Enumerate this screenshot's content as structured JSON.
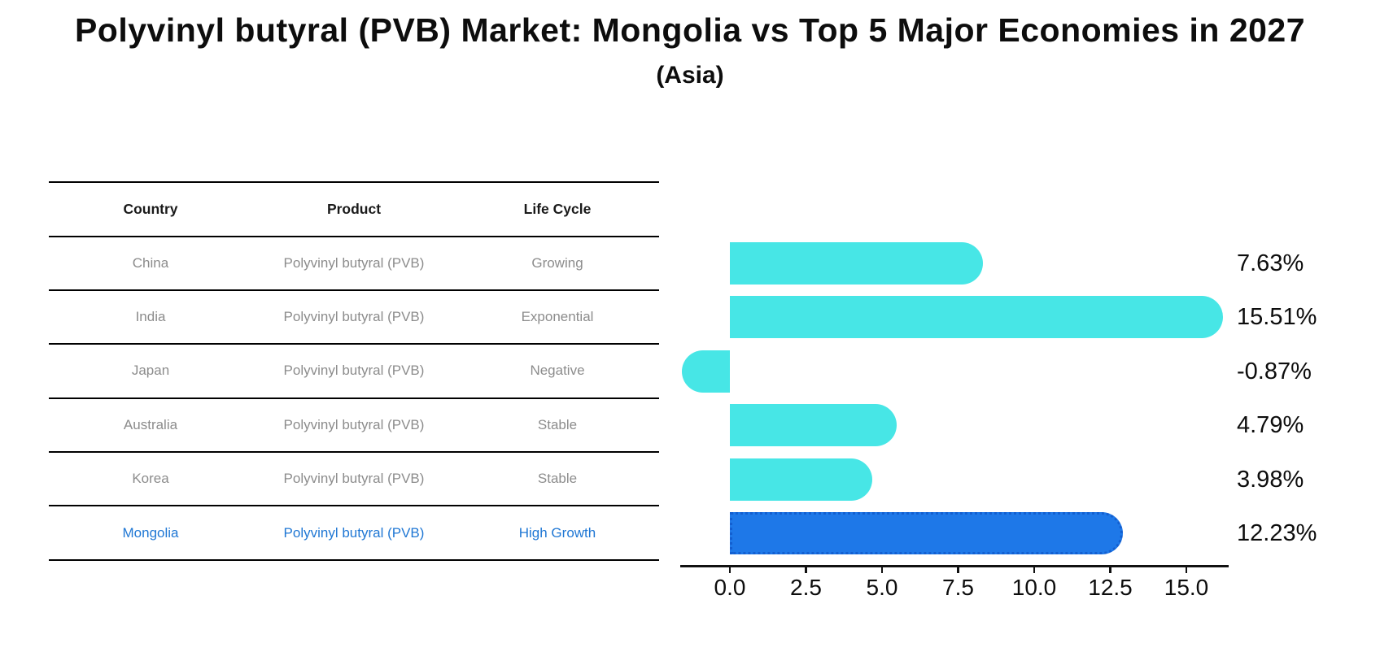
{
  "title": "Polyvinyl butyral (PVB) Market: Mongolia vs Top 5 Major Economies in 2027",
  "subtitle": "(Asia)",
  "table": {
    "headers": [
      "Country",
      "Product",
      "Life Cycle"
    ],
    "rows": [
      {
        "country": "China",
        "product": "Polyvinyl butyral (PVB)",
        "life_cycle": "Growing",
        "highlight": false
      },
      {
        "country": "India",
        "product": "Polyvinyl butyral (PVB)",
        "life_cycle": "Exponential",
        "highlight": false
      },
      {
        "country": "Japan",
        "product": "Polyvinyl butyral (PVB)",
        "life_cycle": "Negative",
        "highlight": false
      },
      {
        "country": "Australia",
        "product": "Polyvinyl butyral (PVB)",
        "life_cycle": "Stable",
        "highlight": false
      },
      {
        "country": "Korea",
        "product": "Polyvinyl butyral (PVB)",
        "life_cycle": "Stable",
        "highlight": false
      },
      {
        "country": "Mongolia",
        "product": "Polyvinyl butyral (PVB)",
        "life_cycle": "High Growth",
        "highlight": true
      }
    ]
  },
  "chart_data": {
    "type": "bar",
    "orientation": "horizontal",
    "title": "Polyvinyl butyral (PVB) Market: Mongolia vs Top 5 Major Economies in 2027 (Asia)",
    "categories": [
      "China",
      "India",
      "Japan",
      "Australia",
      "Korea",
      "Mongolia"
    ],
    "values": [
      7.63,
      15.51,
      -0.87,
      4.79,
      3.98,
      12.23
    ],
    "value_labels": [
      "7.63%",
      "15.51%",
      "-0.87%",
      "4.79%",
      "3.98%",
      "12.23%"
    ],
    "unit": "%",
    "highlight_index": 5,
    "x_tick_labels": [
      "0.0",
      "2.5",
      "5.0",
      "7.5",
      "10.0",
      "12.5",
      "15.0"
    ],
    "x_tick_values": [
      0,
      2.5,
      5,
      7.5,
      10,
      12.5,
      15
    ],
    "xlim": [
      -1.63,
      16.35
    ],
    "grid": false,
    "legend": false,
    "colors": {
      "bar": "#47E6E6",
      "highlight_bar": "#1E78E8",
      "highlight_bar_edge": "#135fd0",
      "highlight_text": "#1f77d4",
      "table_text": "#8c8c8c",
      "header_text": "#1a1a1a",
      "axis": "#111111"
    }
  }
}
